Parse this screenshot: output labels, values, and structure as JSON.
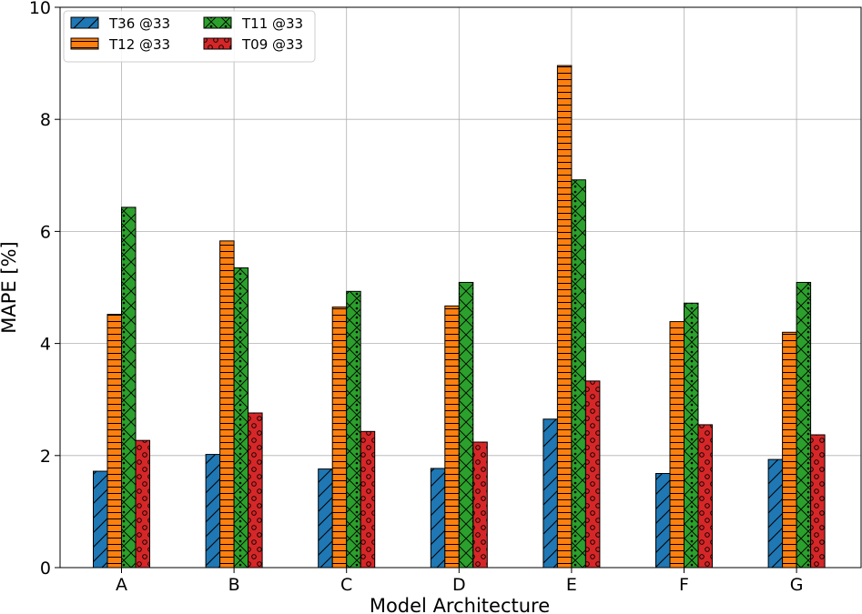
{
  "chart_data": {
    "type": "bar",
    "title": "",
    "xlabel": "Model Architecture",
    "ylabel": "MAPE [%]",
    "ylim": [
      0,
      10
    ],
    "yticks": [
      "0",
      "2",
      "4",
      "6",
      "8",
      "10"
    ],
    "categories": [
      "A",
      "B",
      "C",
      "D",
      "E",
      "F",
      "G"
    ],
    "grid": true,
    "legend_position": "top-left",
    "series": [
      {
        "name": "T36 @33",
        "color": "#1f77b4",
        "pattern": "diagonal-hatch",
        "values": [
          1.72,
          2.02,
          1.76,
          1.77,
          2.65,
          1.68,
          1.93
        ]
      },
      {
        "name": "T12 @33",
        "color": "#ff7f0e",
        "pattern": "horizontal-hatch",
        "values": [
          4.52,
          5.83,
          4.65,
          4.67,
          8.96,
          4.39,
          4.2
        ]
      },
      {
        "name": "T11 @33",
        "color": "#2ca02c",
        "pattern": "cross-dot",
        "values": [
          6.43,
          5.35,
          4.93,
          5.09,
          6.92,
          4.72,
          5.09
        ]
      },
      {
        "name": "T09 @33",
        "color": "#d62728",
        "pattern": "circles",
        "values": [
          2.27,
          2.76,
          2.43,
          2.24,
          3.33,
          2.55,
          2.37
        ]
      }
    ]
  }
}
